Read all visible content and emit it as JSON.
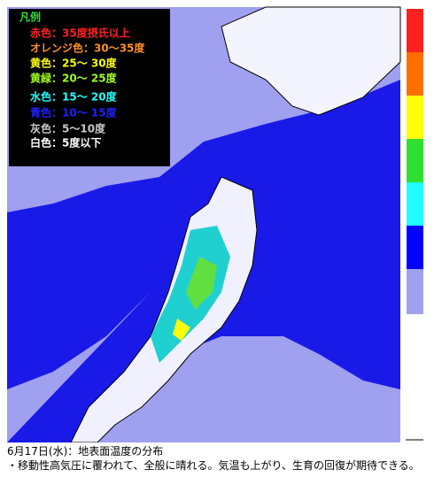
{
  "legend": {
    "title": "凡例",
    "items": [
      {
        "label": "赤色：35度摂氏以上",
        "color": "#ff2020"
      },
      {
        "label": "オレンジ色：30～35度",
        "color": "#ff9020"
      },
      {
        "label": "黄色：25～ 30度",
        "color": "#ffff00"
      },
      {
        "label": "黄緑：20～ 25度",
        "color": "#a0ff20"
      },
      {
        "label": "水色：15～ 20度",
        "color": "#20ffff"
      },
      {
        "label": "青色：10～ 15度",
        "color": "#2020ff"
      },
      {
        "label": "灰色：5～10度",
        "color": "#c8c8c8"
      },
      {
        "label": "白色：5度以下",
        "color": "#ffffff"
      }
    ]
  },
  "caption": "6月17日(水)：地表面温度の分布",
  "note": "・移動性高気圧に覆われて、全般に晴れる。気温も上がり、生育の回復が期待できる。"
}
